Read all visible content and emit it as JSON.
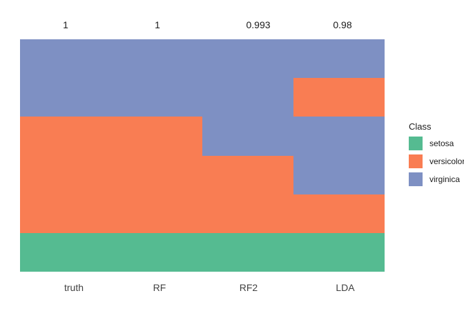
{
  "figure": {
    "background": "#ffffff"
  },
  "chart_data": {
    "type": "bar",
    "subtype": "stacked-proportion-columns",
    "title": "",
    "legend_title": "Class",
    "legend_position": "right",
    "grid": false,
    "axis_ticks": false,
    "categories": [
      "truth",
      "RF",
      "RF2",
      "LDA"
    ],
    "top_values": [
      "1",
      "1",
      "0.993",
      "0.98"
    ],
    "classes": [
      {
        "name": "setosa",
        "color": "#55BB91"
      },
      {
        "name": "versicolor",
        "color": "#F97D53"
      },
      {
        "name": "virginica",
        "color": "#7E90C3"
      }
    ],
    "columns": [
      {
        "label": "truth",
        "top_value": "1",
        "segments": [
          {
            "class": "virginica",
            "fraction": 0.3333
          },
          {
            "class": "versicolor",
            "fraction": 0.5
          },
          {
            "class": "setosa",
            "fraction": 0.1667
          }
        ]
      },
      {
        "label": "RF",
        "top_value": "1",
        "segments": [
          {
            "class": "virginica",
            "fraction": 0.3333
          },
          {
            "class": "versicolor",
            "fraction": 0.5
          },
          {
            "class": "setosa",
            "fraction": 0.1667
          }
        ]
      },
      {
        "label": "RF2",
        "top_value": "0.993",
        "segments": [
          {
            "class": "virginica",
            "fraction": 0.5
          },
          {
            "class": "versicolor",
            "fraction": 0.3333
          },
          {
            "class": "setosa",
            "fraction": 0.1667
          }
        ]
      },
      {
        "label": "LDA",
        "top_value": "0.98",
        "segments": [
          {
            "class": "virginica",
            "fraction": 0.1667
          },
          {
            "class": "versicolor",
            "fraction": 0.1667
          },
          {
            "class": "virginica",
            "fraction": 0.3333
          },
          {
            "class": "versicolor",
            "fraction": 0.1667
          },
          {
            "class": "setosa",
            "fraction": 0.1667
          }
        ]
      }
    ],
    "text_colors": {
      "top_values": "#1a1a1a",
      "x_labels": "#404040",
      "legend": "#1a1a1a"
    }
  }
}
